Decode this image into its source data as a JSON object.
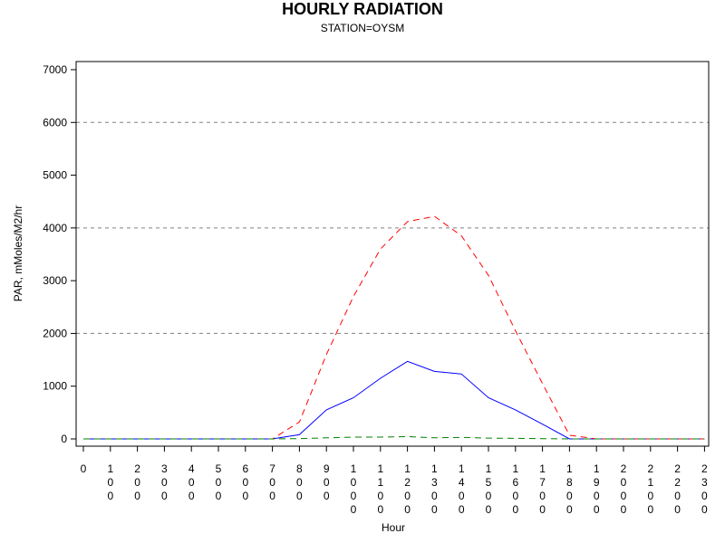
{
  "chart_data": {
    "type": "line",
    "title": "HOURLY RADIATION",
    "subtitle": "STATION=OYSM",
    "xlabel": "Hour",
    "ylabel": "PAR, mMoles/M2/hr",
    "ylim": [
      0,
      7000
    ],
    "yticks": [
      0,
      1000,
      2000,
      3000,
      4000,
      5000,
      6000,
      7000
    ],
    "grid_lines_at": [
      2000,
      4000,
      6000
    ],
    "x": [
      0,
      100,
      200,
      300,
      400,
      500,
      600,
      700,
      800,
      900,
      1000,
      1100,
      1200,
      1300,
      1400,
      1500,
      1600,
      1700,
      1800,
      1900,
      2000,
      2100,
      2200,
      2300
    ],
    "x_tick_labels": [
      "0",
      "100",
      "200",
      "300",
      "400",
      "500",
      "600",
      "700",
      "800",
      "900",
      "1000",
      "1100",
      "1200",
      "1300",
      "1400",
      "1500",
      "1600",
      "1700",
      "1800",
      "1900",
      "2000",
      "2100",
      "2200",
      "2300"
    ],
    "series": [
      {
        "color": "#0000ff",
        "dash": "solid",
        "values": [
          0,
          0,
          0,
          0,
          0,
          0,
          0,
          0,
          80,
          550,
          780,
          1150,
          1470,
          1280,
          1230,
          780,
          550,
          280,
          0,
          0,
          0,
          0,
          0,
          0
        ]
      },
      {
        "color": "#ff0000",
        "dash": "dashed",
        "values": [
          0,
          0,
          0,
          0,
          0,
          0,
          0,
          0,
          320,
          1600,
          2700,
          3600,
          4120,
          4220,
          3850,
          3100,
          2050,
          1050,
          70,
          0,
          0,
          0,
          0,
          0
        ]
      },
      {
        "color": "#008000",
        "dash": "dashed",
        "values": [
          0,
          0,
          0,
          0,
          0,
          0,
          0,
          0,
          5,
          20,
          35,
          35,
          45,
          20,
          30,
          15,
          10,
          5,
          0,
          0,
          0,
          0,
          0,
          0
        ]
      }
    ]
  }
}
